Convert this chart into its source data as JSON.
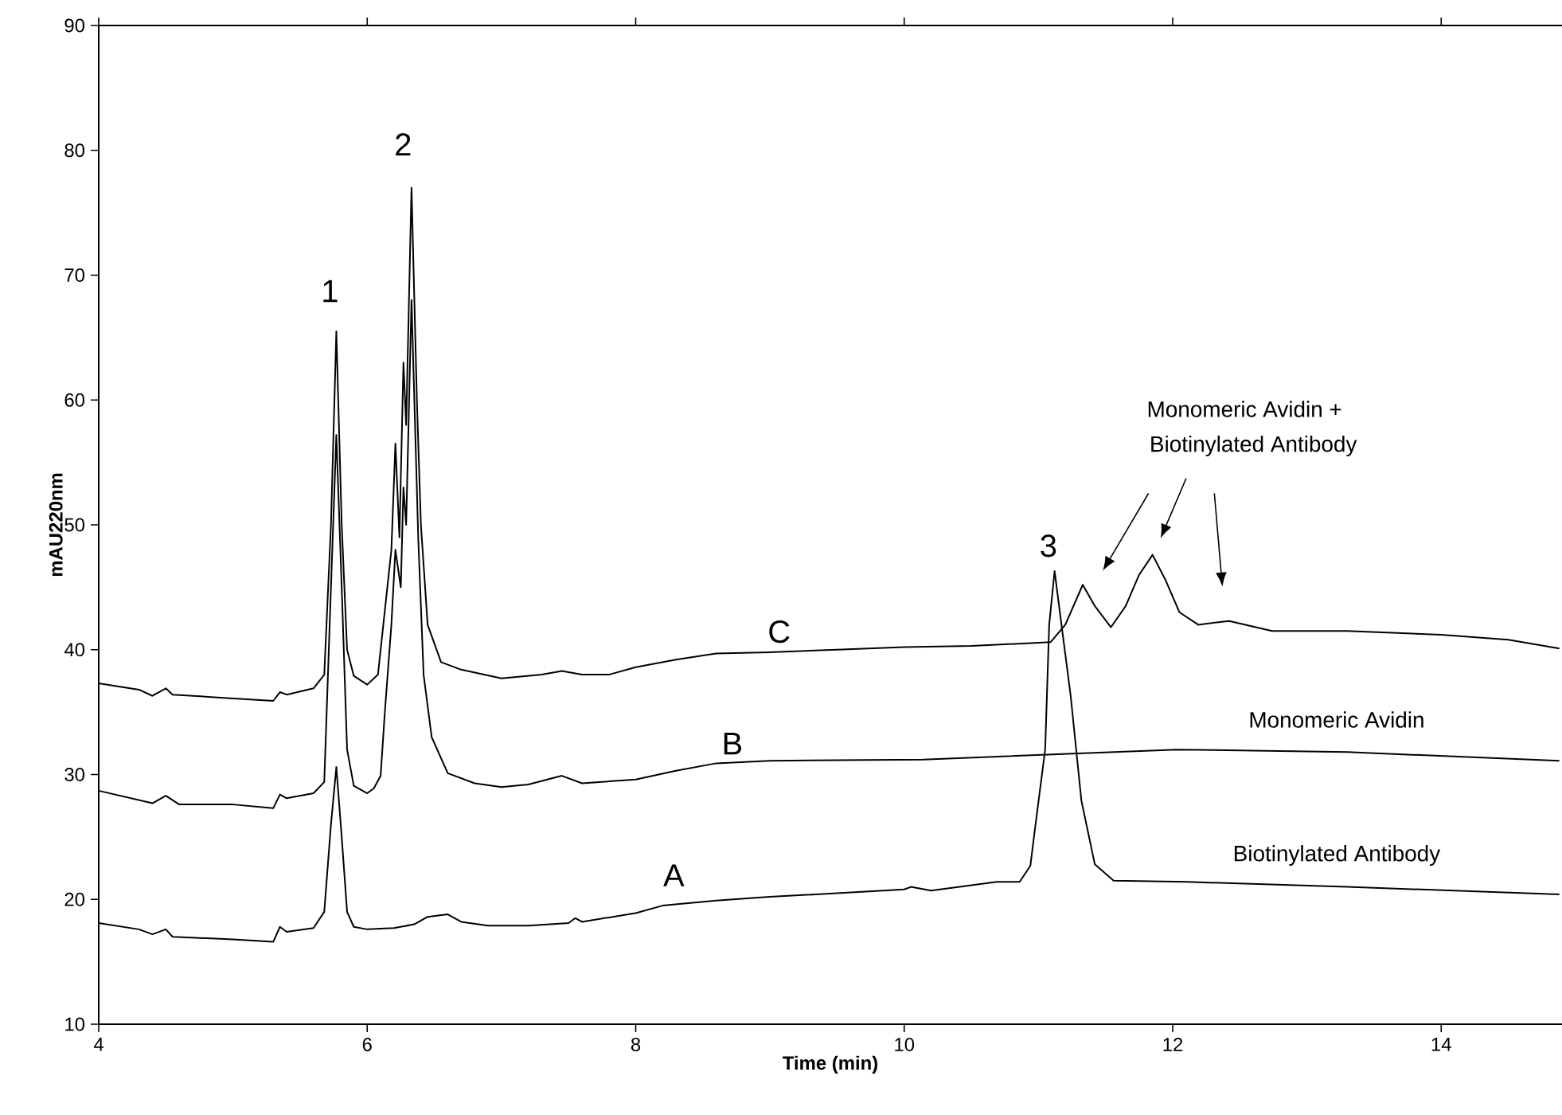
{
  "chart_data": {
    "type": "line",
    "xlabel": "Time (min)",
    "ylabel": "mAU220nm",
    "xlim": [
      4,
      14.9
    ],
    "ylim": [
      10,
      90
    ],
    "xticks": [
      4,
      6,
      8,
      10,
      12,
      14
    ],
    "yticks": [
      10,
      20,
      30,
      40,
      50,
      60,
      70,
      80,
      90
    ],
    "grid": false,
    "marker": "none",
    "line_style": "solid",
    "series": [
      {
        "color": "#000000",
        "x": [
          4.0,
          4.3,
          4.4,
          4.5,
          4.55,
          5.0,
          5.3,
          5.35,
          5.4,
          5.6,
          5.68,
          5.73,
          5.77,
          5.81,
          5.85,
          5.9,
          6.0,
          6.08,
          6.13,
          6.18,
          6.21,
          6.24,
          6.27,
          6.29,
          6.33,
          6.37,
          6.4,
          6.45,
          6.55,
          6.7,
          7.0,
          7.3,
          7.45,
          7.6,
          7.8,
          8.0,
          8.3,
          8.6,
          9.0,
          9.5,
          10.0,
          10.5,
          11.09,
          11.2,
          11.33,
          11.42,
          11.54,
          11.65,
          11.75,
          11.85,
          11.95,
          12.05,
          12.19,
          12.42,
          12.74,
          13.3,
          14.0,
          14.5,
          14.88
        ],
        "values": [
          37.3,
          36.8,
          36.3,
          36.9,
          36.4,
          36.1,
          35.9,
          36.6,
          36.4,
          36.9,
          38,
          50,
          65.5,
          50,
          40,
          37.9,
          37.2,
          38,
          43,
          48,
          56.5,
          49,
          63,
          58,
          77,
          60,
          50,
          42,
          39.0,
          38.4,
          37.7,
          38.0,
          38.3,
          38.0,
          38.0,
          38.6,
          39.2,
          39.7,
          39.8,
          40.0,
          40.2,
          40.3,
          40.6,
          42,
          45.2,
          43.5,
          41.8,
          43.5,
          46,
          47.6,
          45.5,
          43,
          42.0,
          42.3,
          41.5,
          41.5,
          41.2,
          40.8,
          40.1
        ]
      },
      {
        "color": "#000000",
        "x": [
          4.0,
          4.4,
          4.5,
          4.6,
          5.0,
          5.3,
          5.35,
          5.4,
          5.6,
          5.68,
          5.73,
          5.77,
          5.81,
          5.85,
          5.9,
          6.0,
          6.05,
          6.1,
          6.13,
          6.18,
          6.21,
          6.25,
          6.27,
          6.29,
          6.33,
          6.38,
          6.42,
          6.48,
          6.6,
          6.8,
          7.0,
          7.2,
          7.45,
          7.6,
          8.0,
          8.3,
          8.6,
          9.0,
          10.14,
          12.03,
          13.3,
          14.88
        ],
        "values": [
          28.7,
          27.7,
          28.3,
          27.6,
          27.6,
          27.3,
          28.4,
          28.1,
          28.5,
          29.4,
          45,
          57.2,
          45,
          32,
          29.1,
          28.5,
          28.9,
          29.9,
          34.8,
          42,
          48,
          45,
          53,
          50,
          68,
          49,
          38,
          33,
          30.1,
          29.3,
          29.0,
          29.2,
          29.9,
          29.3,
          29.6,
          30.3,
          30.9,
          31.1,
          31.2,
          32.0,
          31.8,
          31.1
        ]
      },
      {
        "color": "#000000",
        "x": [
          4.0,
          4.3,
          4.4,
          4.5,
          4.55,
          5.0,
          5.3,
          5.35,
          5.4,
          5.6,
          5.68,
          5.73,
          5.77,
          5.81,
          5.85,
          5.9,
          6.0,
          6.2,
          6.35,
          6.45,
          6.6,
          6.7,
          6.9,
          7.2,
          7.5,
          7.55,
          7.6,
          8.0,
          8.2,
          8.6,
          9.0,
          10.0,
          10.05,
          10.2,
          10.69,
          10.86,
          10.94,
          10.97,
          11.05,
          11.08,
          11.12,
          11.24,
          11.32,
          11.42,
          11.56,
          12.11,
          13.3,
          14.88
        ],
        "values": [
          18.1,
          17.6,
          17.2,
          17.6,
          17.0,
          16.8,
          16.6,
          17.8,
          17.4,
          17.7,
          19.0,
          26,
          30.6,
          25,
          19,
          17.8,
          17.6,
          17.7,
          18.0,
          18.6,
          18.8,
          18.2,
          17.9,
          17.9,
          18.1,
          18.5,
          18.2,
          18.9,
          19.5,
          19.9,
          20.2,
          20.8,
          21.0,
          20.7,
          21.4,
          21.4,
          22.7,
          25.3,
          32,
          42,
          46.3,
          36.3,
          27.9,
          22.8,
          21.5,
          21.4,
          21.0,
          20.4
        ]
      }
    ],
    "annotations": [
      "1",
      "2",
      "3",
      "A",
      "B",
      "C",
      "Monomeric Avidin",
      "Biotinylated Antibody",
      "Monomeric Avidin +",
      "Biotinylated Antibody"
    ]
  }
}
